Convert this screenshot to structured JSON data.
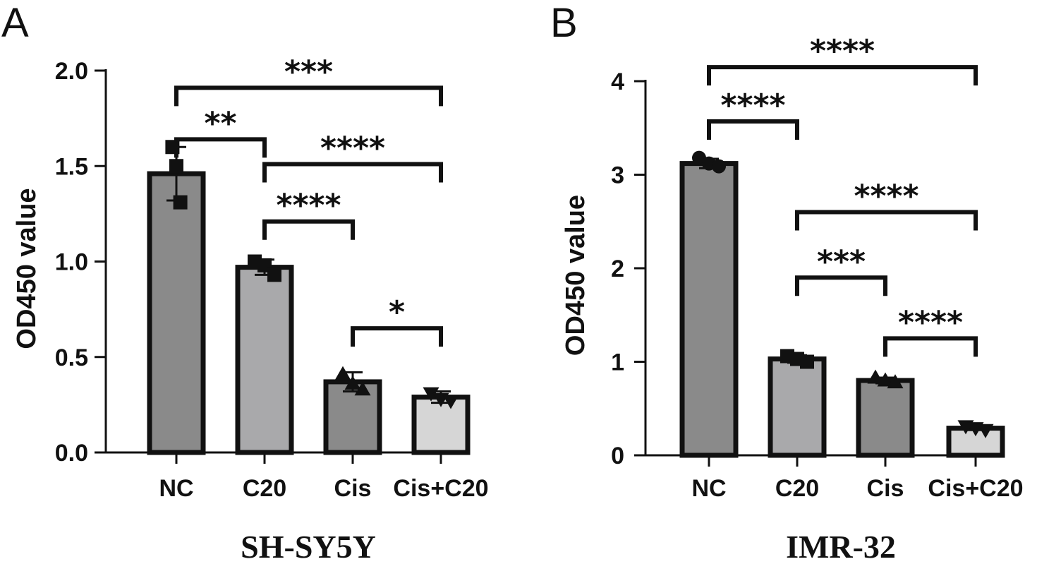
{
  "chart_data": [
    {
      "type": "bar",
      "panel": "A",
      "categories": [
        "NC",
        "C20",
        "Cis",
        "Cis+C20"
      ],
      "values": [
        1.46,
        0.97,
        0.37,
        0.29
      ],
      "errors": [
        0.14,
        0.04,
        0.05,
        0.03
      ],
      "points": [
        [
          1.6,
          1.5,
          1.31
        ],
        [
          1.0,
          0.98,
          0.93
        ],
        [
          0.41,
          0.36,
          0.33
        ],
        [
          0.31,
          0.28,
          0.27
        ]
      ],
      "markers": [
        "square",
        "square",
        "triangle",
        "triangle-down"
      ],
      "bar_colors": [
        "#8a8a8a",
        "#a9a9ab",
        "#8a8a8a",
        "#d6d6d6"
      ],
      "xlabel": "SH-SY5Y",
      "ylabel": "OD450 value",
      "ylim": [
        0,
        2.0
      ],
      "yticks": [
        "0.0",
        "0.5",
        "1.0",
        "1.5",
        "2.0"
      ],
      "ytick_values": [
        0,
        0.5,
        1.0,
        1.5,
        2.0
      ],
      "significance": [
        {
          "from": 0,
          "to": 3,
          "y": 1.91,
          "label": "***"
        },
        {
          "from": 0,
          "to": 1,
          "y": 1.64,
          "label": "**"
        },
        {
          "from": 1,
          "to": 3,
          "y": 1.51,
          "label": "****"
        },
        {
          "from": 1,
          "to": 2,
          "y": 1.21,
          "label": "****"
        },
        {
          "from": 2,
          "to": 3,
          "y": 0.65,
          "label": "*"
        }
      ]
    },
    {
      "type": "bar",
      "panel": "B",
      "categories": [
        "NC",
        "C20",
        "Cis",
        "Cis+C20"
      ],
      "values": [
        3.12,
        1.03,
        0.8,
        0.29
      ],
      "errors": [
        0.05,
        0.04,
        0.03,
        0.02
      ],
      "points": [
        [
          3.18,
          3.12,
          3.09
        ],
        [
          1.06,
          1.03,
          1.0
        ],
        [
          0.83,
          0.8,
          0.78
        ],
        [
          0.31,
          0.29,
          0.27
        ]
      ],
      "markers": [
        "circle",
        "square",
        "triangle",
        "triangle-down"
      ],
      "bar_colors": [
        "#8a8a8a",
        "#a9a9ab",
        "#8a8a8a",
        "#d6d6d6"
      ],
      "xlabel": "IMR-32",
      "ylabel": "OD450 value",
      "ylim": [
        0,
        4
      ],
      "yticks": [
        "0",
        "1",
        "2",
        "3",
        "4"
      ],
      "ytick_values": [
        0,
        1,
        2,
        3,
        4
      ],
      "significance": [
        {
          "from": 0,
          "to": 3,
          "y": 4.15,
          "label": "****"
        },
        {
          "from": 0,
          "to": 1,
          "y": 3.57,
          "label": "****"
        },
        {
          "from": 1,
          "to": 3,
          "y": 2.6,
          "label": "****"
        },
        {
          "from": 1,
          "to": 2,
          "y": 1.9,
          "label": "***"
        },
        {
          "from": 2,
          "to": 3,
          "y": 1.25,
          "label": "****"
        }
      ]
    }
  ]
}
